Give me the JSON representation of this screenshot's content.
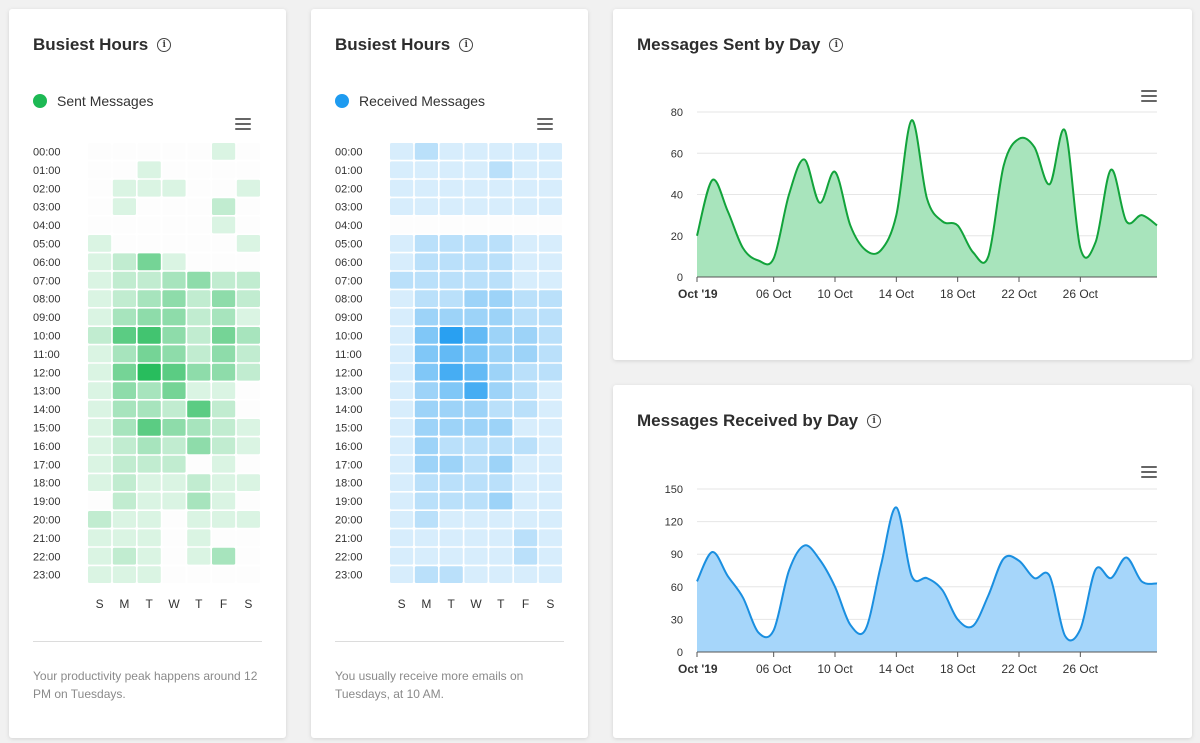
{
  "cards": {
    "sent_heatmap": {
      "title": "Busiest Hours",
      "legend": "Sent Messages",
      "note": "Your productivity peak happens around 12 PM on Tuesdays."
    },
    "received_heatmap": {
      "title": "Busiest Hours",
      "legend": "Received Messages",
      "note": "You usually receive more emails on Tuesdays, at 10 AM."
    },
    "sent_by_day": {
      "title": "Messages Sent by Day"
    },
    "received_by_day": {
      "title": "Messages Received by Day"
    }
  },
  "icons": {
    "info": "info-icon",
    "menu": "hamburger-menu-icon"
  },
  "colors": {
    "sent": "#1db954",
    "sent_line": "#12a33b",
    "sent_fill": "#a8e4bc",
    "received": "#1e9bf0",
    "received_line": "#1a8fe0",
    "received_fill": "#a6d6fa",
    "grid": "#e6e6e6"
  },
  "chart_data": [
    {
      "type": "heatmap",
      "title": "Busiest Hours",
      "series_name": "Sent Messages",
      "hours": [
        "00:00",
        "01:00",
        "02:00",
        "03:00",
        "04:00",
        "05:00",
        "06:00",
        "07:00",
        "08:00",
        "09:00",
        "10:00",
        "11:00",
        "12:00",
        "13:00",
        "14:00",
        "15:00",
        "16:00",
        "17:00",
        "18:00",
        "19:00",
        "20:00",
        "21:00",
        "22:00",
        "23:00"
      ],
      "days": [
        "S",
        "M",
        "T",
        "W",
        "T",
        "F",
        "S"
      ],
      "values": [
        [
          0,
          0,
          0,
          0,
          0,
          1,
          0
        ],
        [
          0,
          0,
          1,
          0,
          0,
          0,
          0
        ],
        [
          0,
          1,
          1,
          1,
          0,
          0,
          1
        ],
        [
          0,
          1,
          0,
          0,
          0,
          2,
          0
        ],
        [
          0,
          0,
          0,
          0,
          0,
          1,
          0
        ],
        [
          1,
          0,
          0,
          0,
          0,
          0,
          1
        ],
        [
          1,
          2,
          5,
          1,
          0,
          0,
          0
        ],
        [
          1,
          2,
          2,
          3,
          4,
          2,
          2
        ],
        [
          1,
          2,
          3,
          4,
          2,
          4,
          2
        ],
        [
          1,
          3,
          4,
          4,
          2,
          3,
          1
        ],
        [
          2,
          6,
          7,
          4,
          2,
          5,
          3
        ],
        [
          1,
          3,
          5,
          4,
          2,
          4,
          2
        ],
        [
          1,
          5,
          8,
          6,
          4,
          4,
          2
        ],
        [
          1,
          4,
          3,
          5,
          1,
          1,
          0
        ],
        [
          1,
          3,
          3,
          2,
          6,
          2,
          0
        ],
        [
          1,
          3,
          6,
          4,
          3,
          2,
          1
        ],
        [
          1,
          2,
          3,
          2,
          4,
          2,
          1
        ],
        [
          1,
          2,
          2,
          2,
          0,
          1,
          0
        ],
        [
          1,
          2,
          1,
          1,
          2,
          1,
          1
        ],
        [
          0,
          2,
          1,
          1,
          3,
          1,
          0
        ],
        [
          2,
          1,
          1,
          0,
          1,
          1,
          1
        ],
        [
          1,
          1,
          1,
          0,
          1,
          0,
          0
        ],
        [
          1,
          2,
          1,
          0,
          1,
          3,
          0
        ],
        [
          1,
          1,
          1,
          0,
          0,
          0,
          0
        ]
      ]
    },
    {
      "type": "heatmap",
      "title": "Busiest Hours",
      "series_name": "Received Messages",
      "hours": [
        "00:00",
        "01:00",
        "02:00",
        "03:00",
        "04:00",
        "05:00",
        "06:00",
        "07:00",
        "08:00",
        "09:00",
        "10:00",
        "11:00",
        "12:00",
        "13:00",
        "14:00",
        "15:00",
        "16:00",
        "17:00",
        "18:00",
        "19:00",
        "20:00",
        "21:00",
        "22:00",
        "23:00"
      ],
      "days": [
        "S",
        "M",
        "T",
        "W",
        "T",
        "F",
        "S"
      ],
      "values": [
        [
          1,
          2,
          1,
          1,
          1,
          1,
          1
        ],
        [
          1,
          1,
          1,
          1,
          2,
          1,
          1
        ],
        [
          1,
          1,
          1,
          1,
          1,
          1,
          1
        ],
        [
          1,
          1,
          1,
          1,
          1,
          1,
          1
        ],
        [
          0,
          0,
          0,
          0,
          0,
          0,
          0
        ],
        [
          1,
          2,
          2,
          2,
          2,
          1,
          1
        ],
        [
          1,
          2,
          2,
          2,
          2,
          1,
          1
        ],
        [
          2,
          2,
          2,
          2,
          2,
          1,
          1
        ],
        [
          1,
          2,
          2,
          3,
          3,
          2,
          2
        ],
        [
          1,
          3,
          3,
          3,
          3,
          2,
          2
        ],
        [
          1,
          4,
          7,
          5,
          3,
          3,
          2
        ],
        [
          1,
          4,
          5,
          4,
          3,
          3,
          2
        ],
        [
          1,
          4,
          6,
          5,
          3,
          2,
          2
        ],
        [
          1,
          3,
          4,
          6,
          3,
          2,
          1
        ],
        [
          1,
          3,
          3,
          3,
          2,
          2,
          1
        ],
        [
          1,
          3,
          3,
          3,
          3,
          1,
          1
        ],
        [
          1,
          3,
          2,
          2,
          2,
          2,
          1
        ],
        [
          1,
          3,
          3,
          2,
          3,
          1,
          1
        ],
        [
          1,
          2,
          2,
          2,
          2,
          1,
          1
        ],
        [
          1,
          2,
          2,
          2,
          3,
          1,
          1
        ],
        [
          1,
          2,
          1,
          1,
          1,
          1,
          1
        ],
        [
          1,
          1,
          1,
          1,
          1,
          2,
          1
        ],
        [
          1,
          1,
          1,
          1,
          1,
          2,
          1
        ],
        [
          1,
          2,
          2,
          1,
          1,
          1,
          1
        ]
      ]
    },
    {
      "type": "area",
      "title": "Messages Sent by Day",
      "x_tick_labels": [
        "Oct '19",
        "06 Oct",
        "10 Oct",
        "14 Oct",
        "18 Oct",
        "22 Oct",
        "26 Oct"
      ],
      "x_tick_dates": [
        "2019-10-01",
        "2019-10-06",
        "2019-10-10",
        "2019-10-14",
        "2019-10-18",
        "2019-10-22",
        "2019-10-26"
      ],
      "x_range": [
        "2019-10-01",
        "2019-10-31"
      ],
      "yticks": [
        0,
        20,
        40,
        60,
        80
      ],
      "ylim": [
        0,
        80
      ],
      "series": [
        {
          "x": [
            "2019-10-01",
            "2019-10-02",
            "2019-10-03",
            "2019-10-04",
            "2019-10-05",
            "2019-10-06",
            "2019-10-07",
            "2019-10-08",
            "2019-10-09",
            "2019-10-10",
            "2019-10-11",
            "2019-10-12",
            "2019-10-13",
            "2019-10-14",
            "2019-10-15",
            "2019-10-16",
            "2019-10-17",
            "2019-10-18",
            "2019-10-19",
            "2019-10-20",
            "2019-10-21",
            "2019-10-22",
            "2019-10-23",
            "2019-10-24",
            "2019-10-25",
            "2019-10-26",
            "2019-10-27",
            "2019-10-28",
            "2019-10-29",
            "2019-10-30",
            "2019-10-31"
          ],
          "values": [
            20,
            47,
            32,
            14,
            8,
            9,
            40,
            57,
            36,
            51,
            25,
            13,
            13,
            30,
            76,
            38,
            27,
            25,
            12,
            10,
            54,
            67,
            63,
            45,
            71,
            14,
            17,
            52,
            27,
            30,
            25
          ]
        }
      ]
    },
    {
      "type": "area",
      "title": "Messages Received by Day",
      "x_tick_labels": [
        "Oct '19",
        "06 Oct",
        "10 Oct",
        "14 Oct",
        "18 Oct",
        "22 Oct",
        "26 Oct"
      ],
      "x_tick_dates": [
        "2019-10-01",
        "2019-10-06",
        "2019-10-10",
        "2019-10-14",
        "2019-10-18",
        "2019-10-22",
        "2019-10-26"
      ],
      "x_range": [
        "2019-10-01",
        "2019-10-31"
      ],
      "yticks": [
        0,
        30,
        60,
        90,
        120,
        150
      ],
      "ylim": [
        0,
        150
      ],
      "series": [
        {
          "x": [
            "2019-10-01",
            "2019-10-02",
            "2019-10-03",
            "2019-10-04",
            "2019-10-05",
            "2019-10-06",
            "2019-10-07",
            "2019-10-08",
            "2019-10-09",
            "2019-10-10",
            "2019-10-11",
            "2019-10-12",
            "2019-10-13",
            "2019-10-14",
            "2019-10-15",
            "2019-10-16",
            "2019-10-17",
            "2019-10-18",
            "2019-10-19",
            "2019-10-20",
            "2019-10-21",
            "2019-10-22",
            "2019-10-23",
            "2019-10-24",
            "2019-10-25",
            "2019-10-26",
            "2019-10-27",
            "2019-10-28",
            "2019-10-29",
            "2019-10-30",
            "2019-10-31"
          ],
          "values": [
            65,
            92,
            70,
            50,
            18,
            20,
            75,
            98,
            85,
            60,
            25,
            21,
            80,
            133,
            70,
            68,
            57,
            30,
            24,
            52,
            86,
            84,
            68,
            70,
            15,
            21,
            76,
            68,
            87,
            65,
            63
          ]
        }
      ]
    }
  ]
}
